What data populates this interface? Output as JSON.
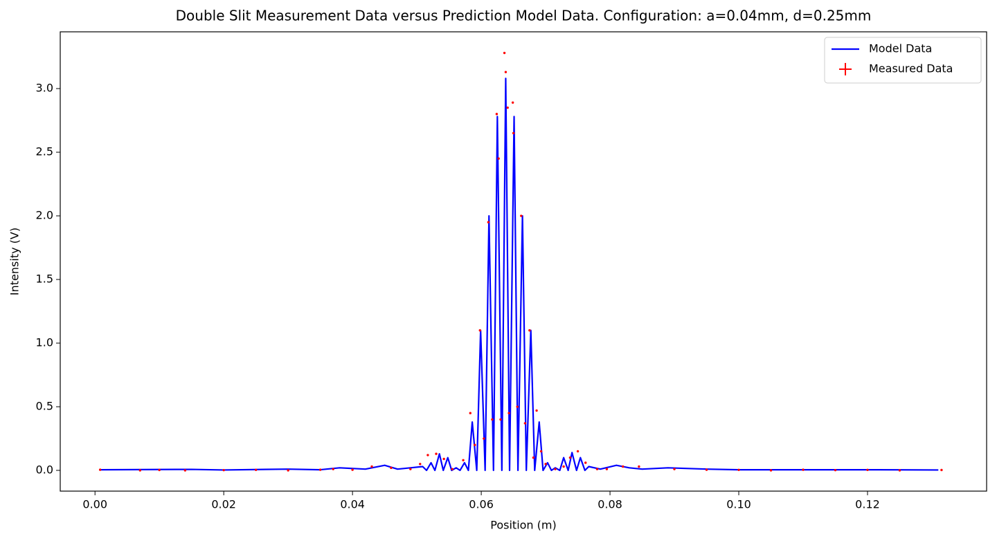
{
  "chart_data": {
    "type": "line",
    "title": "Double Slit Measurement Data versus Prediction Model Data. Configuration: a=0.04mm, d=0.25mm",
    "x_label": "Position (m)",
    "y_label": "Intensity (V)",
    "xlim": [
      -0.0054,
      0.1385
    ],
    "ylim": [
      -0.163,
      3.446
    ],
    "xticks": [
      {
        "value": 0,
        "label": "0.00"
      },
      {
        "value": 0.02,
        "label": "0.02"
      },
      {
        "value": 0.04,
        "label": "0.04"
      },
      {
        "value": 0.06,
        "label": "0.06"
      },
      {
        "value": 0.08,
        "label": "0.08"
      },
      {
        "value": 0.1,
        "label": "0.10"
      },
      {
        "value": 0.12,
        "label": "0.12"
      }
    ],
    "yticks": [
      {
        "value": 0,
        "label": "0.0"
      },
      0.5,
      {
        "value": 1,
        "label": "1.0"
      },
      1.5,
      {
        "value": 2,
        "label": "2.0"
      },
      2.5,
      {
        "value": 3,
        "label": "3.0"
      }
    ],
    "legend": "upper right",
    "series": [
      {
        "name": "Model Data",
        "type": "line",
        "color": "#0000ff",
        "x": [
          0.0008,
          0.015,
          0.02,
          0.03,
          0.035,
          0.038,
          0.042,
          0.045,
          0.047,
          0.049,
          0.0509,
          0.0515,
          0.0522,
          0.0528,
          0.0535,
          0.0541,
          0.0548,
          0.0554,
          0.0561,
          0.0567,
          0.0574,
          0.058,
          0.0586,
          0.0593,
          0.0599,
          0.0606,
          0.0612,
          0.0619,
          0.0625,
          0.0632,
          0.0638,
          0.0644,
          0.0651,
          0.0657,
          0.0664,
          0.067,
          0.0677,
          0.0683,
          0.069,
          0.0696,
          0.0703,
          0.0709,
          0.0715,
          0.0722,
          0.0728,
          0.0735,
          0.0741,
          0.0748,
          0.0754,
          0.0761,
          0.0767,
          0.0785,
          0.081,
          0.083,
          0.085,
          0.089,
          0.095,
          0.1,
          0.11,
          0.12,
          0.131
        ],
        "values": [
          0.005,
          0.008,
          0.003,
          0.01,
          0.005,
          0.02,
          0.01,
          0.04,
          0.01,
          0.02,
          0.03,
          0,
          0.06,
          0,
          0.13,
          0,
          0.1,
          0,
          0.02,
          0,
          0.06,
          0,
          0.38,
          0,
          1.1,
          0,
          2.0,
          0,
          2.78,
          0,
          3.08,
          0,
          2.78,
          0,
          2.0,
          0,
          1.1,
          0,
          0.38,
          0,
          0.06,
          0,
          0.02,
          0,
          0.1,
          0,
          0.14,
          0,
          0.1,
          0,
          0.03,
          0.01,
          0.04,
          0.02,
          0.01,
          0.02,
          0.01,
          0.005,
          0.005,
          0.005,
          0.003
        ]
      },
      {
        "name": "Measured Data",
        "type": "scatter",
        "color": "#ff0000",
        "x": [
          0.0008,
          0.007,
          0.01,
          0.014,
          0.02,
          0.025,
          0.03,
          0.035,
          0.037,
          0.04,
          0.043,
          0.046,
          0.049,
          0.0505,
          0.0517,
          0.053,
          0.0542,
          0.0555,
          0.0572,
          0.0583,
          0.059,
          0.0598,
          0.0604,
          0.0611,
          0.0617,
          0.0624,
          0.0627,
          0.063,
          0.0636,
          0.0638,
          0.0641,
          0.0643,
          0.0649,
          0.065,
          0.0656,
          0.0662,
          0.0668,
          0.0675,
          0.0681,
          0.0686,
          0.0693,
          0.07,
          0.0715,
          0.0728,
          0.0738,
          0.075,
          0.0762,
          0.078,
          0.0795,
          0.082,
          0.0845,
          0.09,
          0.095,
          0.1,
          0.105,
          0.11,
          0.115,
          0.12,
          0.125,
          0.1315
        ],
        "values": [
          0.005,
          0,
          0.003,
          0,
          0.002,
          0.004,
          0,
          0.005,
          0.01,
          0.005,
          0.03,
          0.02,
          0.01,
          0.05,
          0.12,
          0.13,
          0.09,
          0.01,
          0.08,
          0.45,
          0.2,
          1.1,
          0.25,
          1.95,
          0.4,
          2.8,
          2.45,
          0.4,
          3.28,
          3.13,
          2.85,
          0.45,
          2.89,
          2.65,
          0.5,
          2.0,
          0.37,
          1.1,
          0.1,
          0.47,
          0.15,
          0.05,
          0.01,
          0.03,
          0.1,
          0.15,
          0.06,
          0.01,
          0.01,
          0.03,
          0.03,
          0.01,
          0.005,
          0.004,
          0,
          0.005,
          0.002,
          0.004,
          0,
          0.003
        ]
      }
    ]
  }
}
